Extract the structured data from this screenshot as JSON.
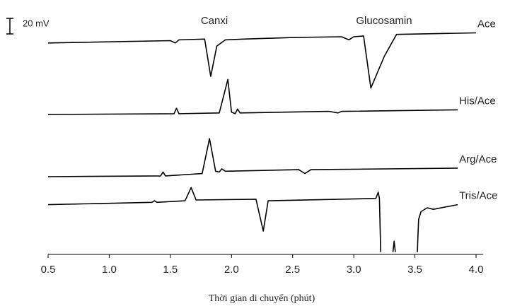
{
  "chart_data": {
    "type": "line",
    "annotations": [
      "Canxi",
      "Glucosamin"
    ],
    "xlabel": "Thời gian di chuyển (phút)",
    "xlim": [
      0.5,
      4.0
    ],
    "xticks": [
      0.5,
      {
        "value": 1,
        "label": "1.0"
      },
      1.5,
      {
        "value": 2,
        "label": "2.0"
      },
      2.5,
      {
        "value": 3,
        "label": "3.0"
      },
      3.5,
      {
        "value": 4,
        "label": "4.0"
      }
    ],
    "ylim": [
      0,
      300
    ],
    "scale_bar": {
      "value": 20,
      "label": "20 mV"
    },
    "series": [
      {
        "name": "Ace",
        "color": "#000000",
        "x": [
          0.5,
          1.5,
          1.54,
          1.57,
          1.78,
          1.83,
          1.88,
          1.95,
          2.1,
          2.5,
          2.9,
          2.96,
          3.0,
          3.08,
          3.14,
          3.25,
          3.35,
          4.0
        ],
        "values": [
          272,
          275,
          272,
          276,
          277,
          229,
          268,
          276,
          277,
          279,
          280,
          276,
          280,
          281,
          214,
          255,
          283,
          285
        ]
      },
      {
        "name": "His/Ace",
        "color": "#000000",
        "x": [
          0.5,
          1.53,
          1.55,
          1.57,
          1.9,
          1.97,
          2.0,
          2.03,
          2.05,
          2.07,
          2.8,
          2.87,
          2.9,
          3.85
        ],
        "values": [
          180,
          181,
          188,
          181,
          182,
          225,
          183,
          181,
          187,
          182,
          184,
          182,
          184,
          186
        ]
      },
      {
        "name": "Arg/Ace",
        "color": "#000000",
        "x": [
          0.5,
          1.42,
          1.44,
          1.46,
          1.76,
          1.82,
          1.87,
          1.9,
          1.92,
          1.95,
          2.55,
          2.6,
          2.65,
          3.85
        ],
        "values": [
          100,
          101,
          106,
          101,
          104,
          149,
          107,
          106,
          110,
          107,
          109,
          104,
          109,
          111
        ]
      },
      {
        "name": "Tris/Ace",
        "color": "#000000",
        "x": [
          0.5,
          1.35,
          1.37,
          1.39,
          1.62,
          1.67,
          1.71,
          2.2,
          2.26,
          2.3,
          3.18,
          3.2,
          3.21,
          3.22,
          3.27,
          3.32,
          3.33,
          3.34,
          3.4,
          3.52,
          3.53,
          3.55,
          3.6,
          3.65,
          3.85
        ],
        "values": [
          64,
          67,
          69,
          67,
          69,
          86,
          70,
          71,
          30,
          69,
          72,
          80,
          72,
          3,
          null,
          3,
          17,
          3,
          null,
          3,
          45,
          55,
          60,
          58,
          64
        ]
      }
    ]
  }
}
